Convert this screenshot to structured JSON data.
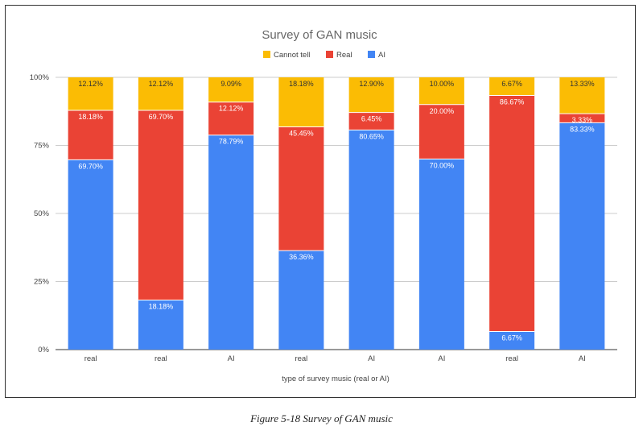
{
  "caption": "Figure 5-18 Survey of GAN music",
  "chart_data": {
    "type": "bar",
    "stacked": true,
    "title": "Survey of GAN music",
    "xlabel": "type of survey music (real or AI)",
    "ylabel": "",
    "categories": [
      "real",
      "real",
      "AI",
      "real",
      "AI",
      "AI",
      "real",
      "AI"
    ],
    "yticks": [
      "0%",
      "25%",
      "50%",
      "75%",
      "100%"
    ],
    "ylim": [
      0,
      100
    ],
    "grid": true,
    "legend_position": "top",
    "series": [
      {
        "name": "AI",
        "color": "#4285f4",
        "values": [
          69.7,
          18.18,
          78.79,
          36.36,
          80.65,
          70.0,
          6.67,
          83.33
        ],
        "labels": [
          "69.70%",
          "18.18%",
          "78.79%",
          "36.36%",
          "80.65%",
          "70.00%",
          "6.67%",
          "83.33%"
        ]
      },
      {
        "name": "Real",
        "color": "#ea4335",
        "values": [
          18.18,
          69.7,
          12.12,
          45.45,
          6.45,
          20.0,
          86.67,
          3.33
        ],
        "labels": [
          "18.18%",
          "69.70%",
          "12.12%",
          "45.45%",
          "6.45%",
          "20.00%",
          "86.67%",
          "3.33%"
        ]
      },
      {
        "name": "Cannot tell",
        "color": "#fbbc04",
        "values": [
          12.12,
          12.12,
          9.09,
          18.18,
          12.9,
          10.0,
          6.67,
          13.33
        ],
        "labels": [
          "12.12%",
          "12.12%",
          "9.09%",
          "18.18%",
          "12.90%",
          "10.00%",
          "6.67%",
          "13.33%"
        ]
      }
    ],
    "legend_order": [
      "Cannot tell",
      "Real",
      "AI"
    ]
  }
}
